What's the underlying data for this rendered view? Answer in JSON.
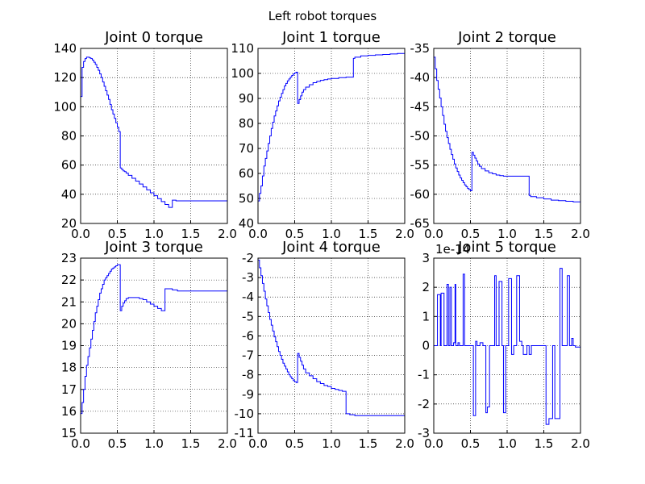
{
  "figure_title": "Left robot torques",
  "line_color": "#0000ff",
  "chart_data": [
    {
      "type": "line",
      "title": "Joint 0 torque",
      "xlabel": "",
      "ylabel": "",
      "xlim": [
        0,
        2
      ],
      "ylim": [
        20,
        140
      ],
      "xticks": [
        "0.0",
        "0.5",
        "1.0",
        "1.5",
        "2.0"
      ],
      "yticks": [
        "20",
        "40",
        "60",
        "80",
        "100",
        "120",
        "140"
      ],
      "step": true,
      "x": [
        0,
        0.02,
        0.04,
        0.06,
        0.08,
        0.1,
        0.12,
        0.14,
        0.16,
        0.18,
        0.2,
        0.22,
        0.24,
        0.26,
        0.28,
        0.3,
        0.32,
        0.34,
        0.36,
        0.38,
        0.4,
        0.42,
        0.44,
        0.46,
        0.48,
        0.5,
        0.52,
        0.54,
        0.56,
        0.58,
        0.6,
        0.62,
        0.65,
        0.7,
        0.75,
        0.8,
        0.85,
        0.9,
        0.95,
        1.0,
        1.05,
        1.1,
        1.15,
        1.2,
        1.25,
        1.28,
        1.3,
        1.35,
        1.4,
        1.5,
        2.0
      ],
      "y": [
        107,
        127,
        131,
        133,
        134,
        134,
        133.5,
        133,
        132,
        130.5,
        129,
        127,
        125,
        122.5,
        120,
        117,
        114,
        111,
        108,
        105,
        101.5,
        98,
        95,
        92,
        89,
        86,
        83,
        58,
        57,
        56,
        55.5,
        54.5,
        53,
        51,
        49,
        47,
        45,
        43,
        41,
        39,
        37,
        35,
        33,
        31,
        36,
        36,
        35.5,
        35.5,
        35.5,
        35.5,
        35.5
      ]
    },
    {
      "type": "line",
      "title": "Joint 1 torque",
      "xlabel": "",
      "ylabel": "",
      "xlim": [
        0,
        2
      ],
      "ylim": [
        40,
        110
      ],
      "xticks": [
        "0.0",
        "0.5",
        "1.0",
        "1.5",
        "2.0"
      ],
      "yticks": [
        "40",
        "50",
        "60",
        "70",
        "80",
        "90",
        "100",
        "110"
      ],
      "step": true,
      "x": [
        0,
        0.02,
        0.04,
        0.06,
        0.08,
        0.1,
        0.12,
        0.14,
        0.16,
        0.18,
        0.2,
        0.22,
        0.24,
        0.26,
        0.28,
        0.3,
        0.32,
        0.34,
        0.36,
        0.38,
        0.4,
        0.42,
        0.44,
        0.46,
        0.48,
        0.5,
        0.52,
        0.54,
        0.56,
        0.58,
        0.6,
        0.62,
        0.65,
        0.7,
        0.75,
        0.8,
        0.85,
        0.9,
        0.95,
        1.0,
        1.1,
        1.2,
        1.3,
        1.32,
        1.4,
        1.5,
        1.6,
        1.7,
        1.8,
        1.9,
        2.0
      ],
      "y": [
        49,
        52,
        55,
        59,
        63,
        66,
        69,
        72,
        75,
        78,
        80.5,
        83,
        85,
        87,
        89,
        90.5,
        92,
        93.5,
        95,
        96,
        97,
        97.8,
        98.5,
        99.2,
        99.8,
        100.2,
        100.5,
        88,
        89.5,
        91,
        92.5,
        93.5,
        94.5,
        95.5,
        96.3,
        96.8,
        97.2,
        97.5,
        97.8,
        98,
        98.3,
        98.5,
        106,
        106.5,
        107,
        107.2,
        107.4,
        107.6,
        107.8,
        108,
        108
      ]
    },
    {
      "type": "line",
      "title": "Joint 2 torque",
      "xlabel": "",
      "ylabel": "",
      "xlim": [
        0,
        2
      ],
      "ylim": [
        -65,
        -35
      ],
      "xticks": [
        "0.0",
        "0.5",
        "1.0",
        "1.5",
        "2.0"
      ],
      "yticks": [
        "-65",
        "-60",
        "-55",
        "-50",
        "-45",
        "-40",
        "-35"
      ],
      "step": true,
      "x": [
        0,
        0.02,
        0.04,
        0.06,
        0.08,
        0.1,
        0.12,
        0.14,
        0.16,
        0.18,
        0.2,
        0.22,
        0.24,
        0.26,
        0.28,
        0.3,
        0.32,
        0.34,
        0.36,
        0.38,
        0.4,
        0.42,
        0.44,
        0.46,
        0.48,
        0.5,
        0.52,
        0.54,
        0.56,
        0.58,
        0.6,
        0.62,
        0.65,
        0.7,
        0.75,
        0.8,
        0.85,
        0.9,
        0.95,
        1.0,
        1.1,
        1.2,
        1.3,
        1.32,
        1.4,
        1.5,
        1.6,
        1.7,
        1.8,
        1.9,
        2.0
      ],
      "y": [
        -36.5,
        -38.5,
        -40.5,
        -42,
        -43.5,
        -45,
        -46.5,
        -48,
        -49.2,
        -50.3,
        -51.3,
        -52.3,
        -53.2,
        -54,
        -54.8,
        -55.5,
        -56.1,
        -56.7,
        -57.2,
        -57.6,
        -58,
        -58.4,
        -58.7,
        -59,
        -59.2,
        -59.4,
        -52.8,
        -53.3,
        -53.8,
        -54.3,
        -54.8,
        -55.2,
        -55.6,
        -56,
        -56.3,
        -56.5,
        -56.7,
        -56.8,
        -56.9,
        -56.9,
        -56.9,
        -56.9,
        -60.2,
        -60.4,
        -60.6,
        -60.8,
        -61,
        -61.1,
        -61.2,
        -61.3,
        -61.3
      ]
    },
    {
      "type": "line",
      "title": "Joint 3 torque",
      "xlabel": "",
      "ylabel": "",
      "xlim": [
        0,
        2
      ],
      "ylim": [
        15,
        23
      ],
      "xticks": [
        "0.0",
        "0.5",
        "1.0",
        "1.5",
        "2.0"
      ],
      "yticks": [
        "15",
        "16",
        "17",
        "18",
        "19",
        "20",
        "21",
        "22",
        "23"
      ],
      "step": true,
      "x": [
        0,
        0.02,
        0.04,
        0.06,
        0.08,
        0.1,
        0.12,
        0.14,
        0.16,
        0.18,
        0.2,
        0.22,
        0.24,
        0.26,
        0.28,
        0.3,
        0.32,
        0.34,
        0.36,
        0.38,
        0.4,
        0.42,
        0.44,
        0.46,
        0.48,
        0.5,
        0.52,
        0.54,
        0.56,
        0.58,
        0.6,
        0.62,
        0.65,
        0.7,
        0.75,
        0.8,
        0.85,
        0.9,
        0.95,
        1.0,
        1.05,
        1.1,
        1.15,
        1.2,
        1.25,
        1.3,
        1.32,
        1.4,
        1.5,
        1.6,
        1.7,
        1.8,
        1.9,
        2.0
      ],
      "y": [
        15.9,
        16.4,
        17,
        17.6,
        18.1,
        18.5,
        18.9,
        19.3,
        19.7,
        20.1,
        20.5,
        20.8,
        21.1,
        21.4,
        21.6,
        21.8,
        22,
        22.1,
        22.2,
        22.3,
        22.4,
        22.5,
        22.55,
        22.6,
        22.65,
        22.7,
        22.7,
        20.6,
        20.8,
        20.95,
        21.05,
        21.15,
        21.2,
        21.2,
        21.2,
        21.15,
        21.1,
        21,
        20.9,
        20.8,
        20.7,
        20.6,
        21.6,
        21.6,
        21.55,
        21.55,
        21.5,
        21.5,
        21.5,
        21.5,
        21.5,
        21.5,
        21.5,
        21.5
      ]
    },
    {
      "type": "line",
      "title": "Joint 4 torque",
      "xlabel": "",
      "ylabel": "",
      "xlim": [
        0,
        2
      ],
      "ylim": [
        -11,
        -2
      ],
      "xticks": [
        "0.0",
        "0.5",
        "1.0",
        "1.5",
        "2.0"
      ],
      "yticks": [
        "-11",
        "-10",
        "-9",
        "-8",
        "-7",
        "-6",
        "-5",
        "-4",
        "-3",
        "-2"
      ],
      "step": true,
      "x": [
        0,
        0.02,
        0.04,
        0.06,
        0.08,
        0.1,
        0.12,
        0.14,
        0.16,
        0.18,
        0.2,
        0.22,
        0.24,
        0.26,
        0.28,
        0.3,
        0.32,
        0.34,
        0.36,
        0.38,
        0.4,
        0.42,
        0.44,
        0.46,
        0.48,
        0.5,
        0.52,
        0.54,
        0.56,
        0.58,
        0.6,
        0.62,
        0.65,
        0.7,
        0.75,
        0.8,
        0.85,
        0.9,
        0.95,
        1.0,
        1.05,
        1.1,
        1.15,
        1.2,
        1.25,
        1.3,
        1.32,
        1.4,
        1.5,
        1.6,
        1.7,
        1.8,
        1.9,
        2.0
      ],
      "y": [
        -2.1,
        -2.5,
        -2.9,
        -3.3,
        -3.7,
        -4.1,
        -4.45,
        -4.8,
        -5.15,
        -5.45,
        -5.75,
        -6.05,
        -6.3,
        -6.55,
        -6.8,
        -7,
        -7.2,
        -7.4,
        -7.55,
        -7.7,
        -7.85,
        -8,
        -8.1,
        -8.2,
        -8.3,
        -8.35,
        -8.4,
        -6.9,
        -7.1,
        -7.3,
        -7.5,
        -7.7,
        -7.9,
        -8.05,
        -8.2,
        -8.35,
        -8.45,
        -8.55,
        -8.6,
        -8.7,
        -8.75,
        -8.8,
        -8.85,
        -10,
        -10.05,
        -10.05,
        -10.1,
        -10.1,
        -10.1,
        -10.1,
        -10.1,
        -10.1,
        -10.1,
        -10.1
      ]
    },
    {
      "type": "line",
      "title": "Joint 5 torque",
      "xlabel": "",
      "ylabel": "",
      "xlim": [
        0,
        2
      ],
      "ylim": [
        -3,
        3
      ],
      "xticks": [
        "0.0",
        "0.5",
        "1.0",
        "1.5",
        "2.0"
      ],
      "yticks": [
        "-3",
        "-2",
        "-1",
        "0",
        "1",
        "2",
        "3"
      ],
      "offset_text": "1e-14",
      "step": true,
      "x": [
        0,
        0.05,
        0.09,
        0.1,
        0.14,
        0.18,
        0.2,
        0.22,
        0.24,
        0.27,
        0.29,
        0.3,
        0.33,
        0.35,
        0.38,
        0.4,
        0.42,
        0.45,
        0.48,
        0.5,
        0.54,
        0.57,
        0.59,
        0.63,
        0.67,
        0.69,
        0.71,
        0.73,
        0.76,
        0.79,
        0.83,
        0.85,
        0.89,
        0.93,
        0.95,
        0.98,
        1.02,
        1.06,
        1.09,
        1.13,
        1.17,
        1.2,
        1.22,
        1.27,
        1.3,
        1.33,
        1.37,
        1.41,
        1.46,
        1.5,
        1.53,
        1.57,
        1.6,
        1.62,
        1.65,
        1.68,
        1.72,
        1.75,
        1.79,
        1.82,
        1.85,
        1.88,
        1.9,
        1.93,
        1.95,
        2.0
      ],
      "y": [
        0,
        1.75,
        0,
        1.8,
        0,
        2.1,
        0,
        2.0,
        0,
        0.1,
        2.1,
        0,
        0.1,
        0,
        0,
        2.45,
        0,
        0,
        0,
        0,
        -2.4,
        0.15,
        0,
        0.1,
        0,
        0,
        -2.3,
        -2.1,
        0,
        0,
        2.4,
        0,
        2.2,
        0,
        -2.3,
        0,
        2.3,
        -0.3,
        0,
        2.4,
        0.15,
        0,
        -0.3,
        0,
        -0.3,
        0,
        0,
        0,
        0,
        0,
        -2.7,
        -2.5,
        -2.5,
        0,
        -2.5,
        -2.5,
        2.65,
        0,
        0,
        2.4,
        0,
        0.25,
        0,
        -0.05,
        -0.05,
        -0.05
      ]
    }
  ]
}
